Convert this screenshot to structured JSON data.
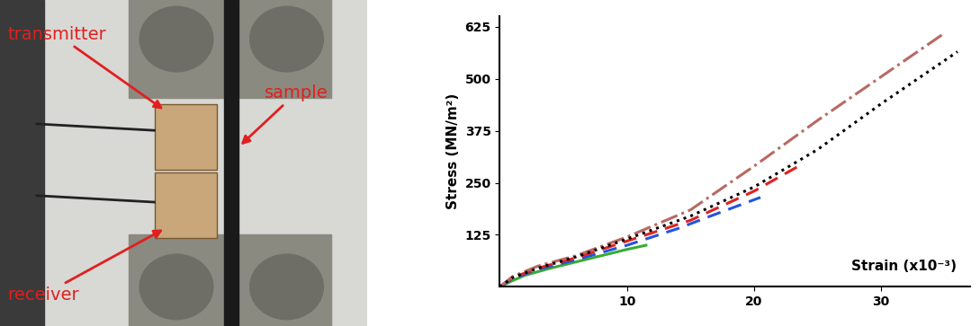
{
  "chart_data": {
    "type": "line",
    "x_label": "Strain (x10⁻³)",
    "y_label": "Stress (MN/m²)",
    "xlim": [
      0,
      37
    ],
    "ylim": [
      0,
      650
    ],
    "xticks": [
      10,
      20,
      30
    ],
    "yticks": [
      125,
      250,
      375,
      500,
      625
    ],
    "grid": false,
    "series": [
      {
        "color": "#3aaa35",
        "line_style": "solid",
        "x": [
          0,
          1,
          2,
          4,
          6,
          8,
          10,
          11.5
        ],
        "values": [
          0,
          15,
          28,
          45,
          60,
          75,
          90,
          100
        ]
      },
      {
        "color": "#2255dd",
        "line_style": "dashed",
        "x": [
          0,
          1,
          3,
          6,
          10,
          14,
          17,
          20.5
        ],
        "values": [
          0,
          20,
          42,
          65,
          100,
          140,
          175,
          215
        ]
      },
      {
        "color": "#e02020",
        "line_style": "dashed",
        "x": [
          0,
          1,
          3,
          6,
          10,
          15,
          20,
          23.5
        ],
        "values": [
          0,
          22,
          45,
          70,
          110,
          160,
          230,
          290
        ]
      },
      {
        "color": "#b86a63",
        "line_style": "dashdot",
        "x": [
          0,
          1,
          3,
          6,
          10,
          15,
          20,
          25,
          30,
          35
        ],
        "values": [
          0,
          25,
          50,
          75,
          120,
          185,
          290,
          400,
          505,
          610
        ]
      },
      {
        "color": "#000000",
        "line_style": "dotted",
        "x": [
          0,
          1,
          3,
          6,
          10,
          15,
          20,
          25,
          30,
          36
        ],
        "values": [
          0,
          22,
          45,
          72,
          115,
          170,
          240,
          330,
          440,
          565
        ]
      }
    ]
  },
  "photo": {
    "annotations": [
      "transmitter",
      "sample",
      "receiver"
    ]
  }
}
